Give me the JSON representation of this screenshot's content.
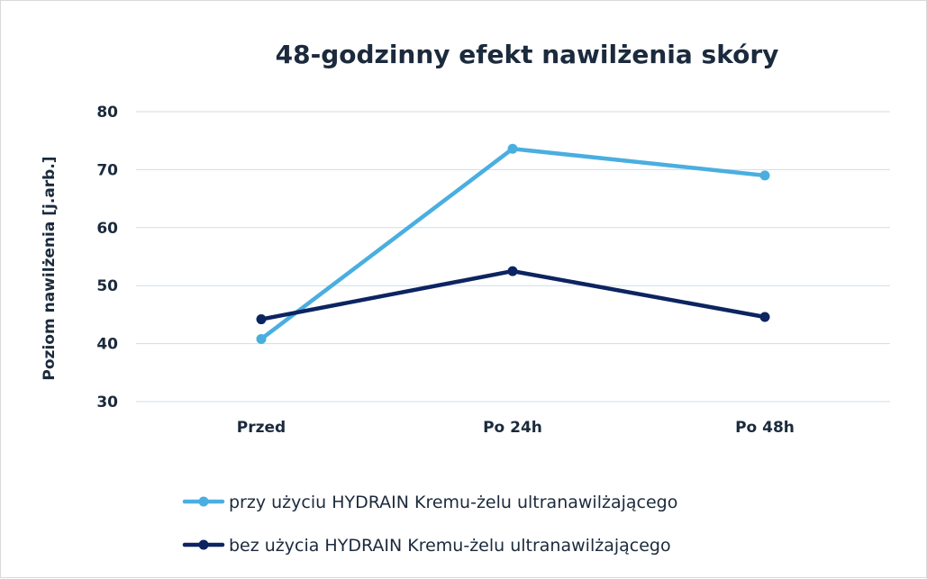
{
  "chart_data": {
    "type": "line",
    "title": "48-godzinny efekt nawilżenia skóry",
    "xlabel": "",
    "ylabel": "Poziom nawilżenia [j.arb.]",
    "categories": [
      "Przed",
      "Po 24h",
      "Po 48h"
    ],
    "ylim": [
      30,
      80
    ],
    "yticks": [
      30,
      40,
      50,
      60,
      70,
      80
    ],
    "grid": true,
    "legend_position": "bottom",
    "series": [
      {
        "name": "przy użyciu HYDRAIN Kremu-żelu ultranawilżającego",
        "values": [
          40.8,
          73.6,
          69.0
        ],
        "color": "#4aaee0"
      },
      {
        "name": "bez użycia HYDRAIN Kremu-żelu ultranawilżającego",
        "values": [
          44.2,
          52.5,
          44.6
        ],
        "color": "#0c2461"
      }
    ]
  }
}
